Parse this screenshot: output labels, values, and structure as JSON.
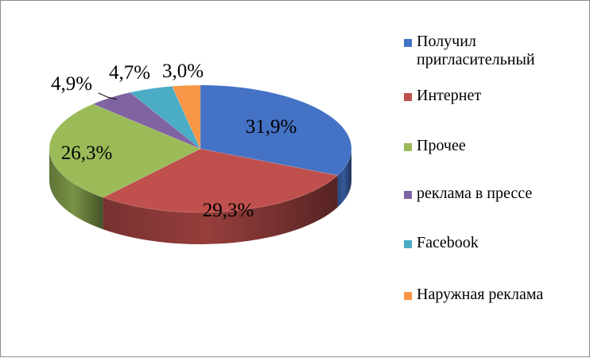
{
  "chart_data": {
    "type": "pie",
    "title": "",
    "categories": [
      "Получил пригласительный",
      "Интернет",
      "Прочее",
      "реклама в прессе",
      "Facebook",
      "Наружная реклама"
    ],
    "values": [
      31.9,
      29.3,
      26.3,
      4.9,
      4.7,
      3.0
    ],
    "labels": [
      "31,9%",
      "29,3%",
      "26,3%",
      "4,9%",
      "4,7%",
      "3,0%"
    ],
    "colors": [
      "#4472C4",
      "#C0504D",
      "#9BBB59",
      "#8064A2",
      "#4BACC6",
      "#F79646"
    ],
    "legend_position": "right",
    "style": "3d-pie"
  },
  "legend": [
    {
      "label_lines": [
        "Получил",
        "пригласительный"
      ]
    },
    {
      "label_lines": [
        "Интернет"
      ]
    },
    {
      "label_lines": [
        "Прочее"
      ]
    },
    {
      "label_lines": [
        "реклама в прессе"
      ]
    },
    {
      "label_lines": [
        "Facebook"
      ]
    },
    {
      "label_lines": [
        "Наружная реклама"
      ]
    }
  ]
}
